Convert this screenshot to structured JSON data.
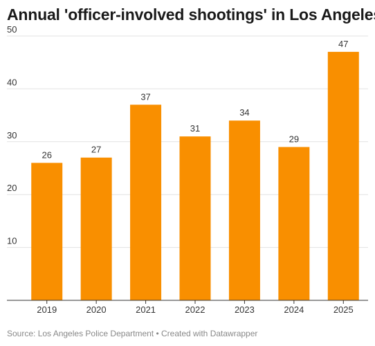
{
  "chart_data": {
    "type": "bar",
    "title": "Annual 'officer-involved shootings' in Los Angeles",
    "categories": [
      "2019",
      "2020",
      "2021",
      "2022",
      "2023",
      "2024",
      "2025"
    ],
    "values": [
      26,
      27,
      37,
      31,
      34,
      29,
      47
    ],
    "ylim": [
      0,
      50
    ],
    "yticks": [
      10,
      20,
      30,
      40,
      50
    ],
    "grid": true,
    "legend": "none",
    "bar_color": "#f98f00",
    "data_labels": true
  },
  "footer": {
    "text": "Source: Los Angeles Police Department • Created with Datawrapper"
  }
}
